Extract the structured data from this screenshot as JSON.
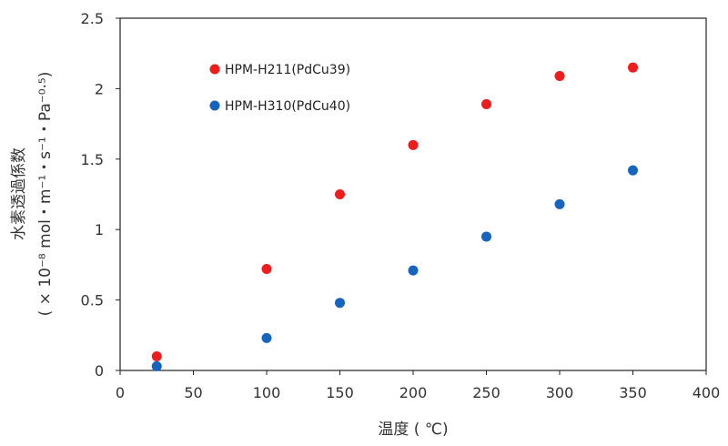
{
  "chart_data": {
    "type": "scatter",
    "title": "",
    "xlabel": "温度 ( ℃)",
    "ylabel_line1": "水素透過係数",
    "ylabel_line2": "( × 10⁻⁸ mol・m⁻¹・s⁻¹・Pa⁻⁰·⁵)",
    "xlim": [
      0,
      400
    ],
    "ylim": [
      0,
      2.5
    ],
    "xticks": [
      0,
      50,
      100,
      150,
      200,
      250,
      300,
      350,
      400
    ],
    "xtick_labels": [
      "0",
      "50",
      "100",
      "150",
      "200",
      "250",
      "300",
      "350",
      "400"
    ],
    "yticks": [
      0,
      0.5,
      1,
      1.5,
      2,
      2.5
    ],
    "ytick_labels": [
      "0",
      "0.5",
      "1",
      "1.5",
      "2",
      "2.5"
    ],
    "grid": false,
    "legend_position": "top-left",
    "series": [
      {
        "name": "HPM-H211(PdCu39)",
        "color": "#ee1c1c",
        "x": [
          25,
          100,
          150,
          200,
          250,
          300,
          350
        ],
        "y": [
          0.1,
          0.72,
          1.25,
          1.6,
          1.89,
          2.09,
          2.15
        ]
      },
      {
        "name": "HPM-H310(PdCu40)",
        "color": "#1565c0",
        "x": [
          25,
          100,
          150,
          200,
          250,
          300,
          350
        ],
        "y": [
          0.03,
          0.23,
          0.48,
          0.71,
          0.95,
          1.18,
          1.42
        ]
      }
    ]
  }
}
